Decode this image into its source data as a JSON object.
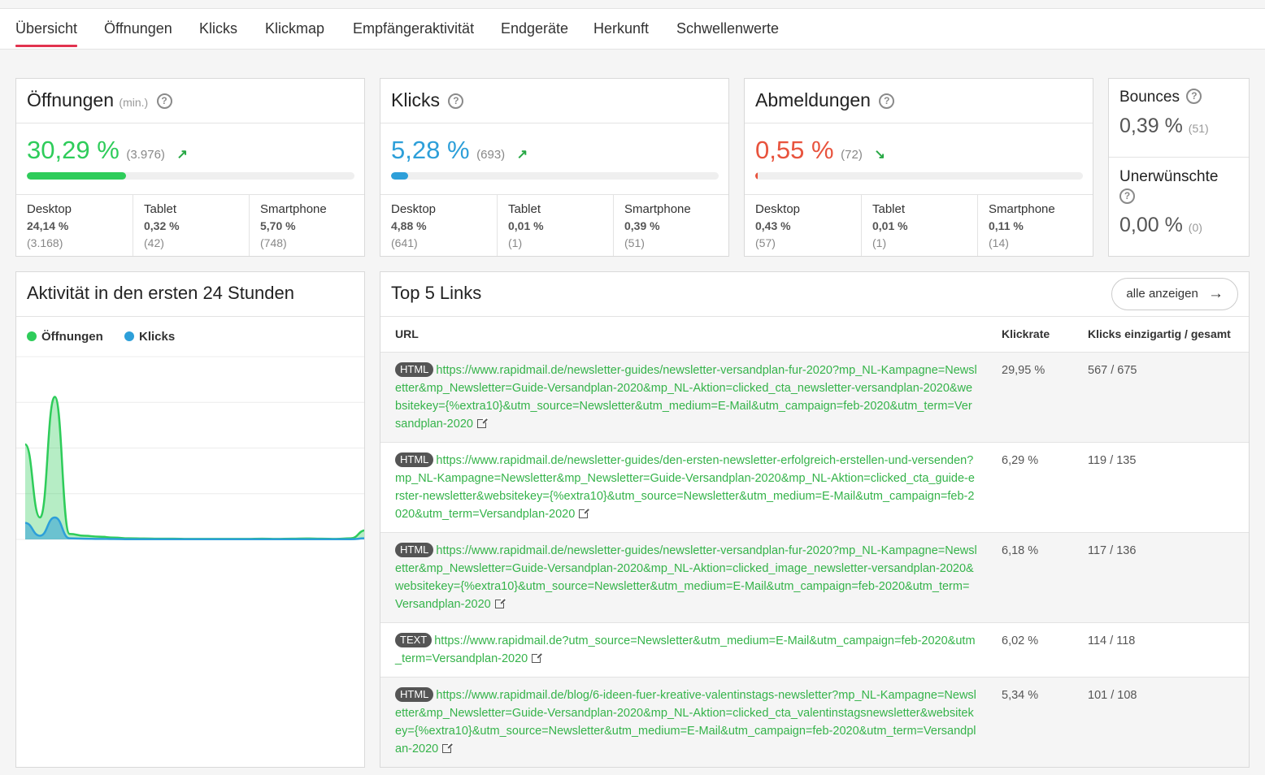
{
  "tabs": [
    "Übersicht",
    "Öffnungen",
    "Klicks",
    "Klickmap",
    "Empfängeraktivität",
    "Endgeräte",
    "Herkunft",
    "Schwellenwerte"
  ],
  "colors": {
    "opens": "#2ecc5a",
    "clicks": "#2d9fd9",
    "unsubs": "#e8533d",
    "tab_accent": "#e2334f",
    "link": "#35b34a"
  },
  "kpis": {
    "opens": {
      "title": "Öffnungen",
      "suffix": "(min.)",
      "value": "30,29 %",
      "count": "(3.976)",
      "trend": "up",
      "fill_percent": 30.29,
      "devices": [
        {
          "label": "Desktop",
          "pct": "24,14 %",
          "count": "(3.168)"
        },
        {
          "label": "Tablet",
          "pct": "0,32 %",
          "count": "(42)"
        },
        {
          "label": "Smartphone",
          "pct": "5,70 %",
          "count": "(748)"
        }
      ]
    },
    "clicks": {
      "title": "Klicks",
      "value": "5,28 %",
      "count": "(693)",
      "trend": "up",
      "fill_percent": 5.28,
      "devices": [
        {
          "label": "Desktop",
          "pct": "4,88 %",
          "count": "(641)"
        },
        {
          "label": "Tablet",
          "pct": "0,01 %",
          "count": "(1)"
        },
        {
          "label": "Smartphone",
          "pct": "0,39 %",
          "count": "(51)"
        }
      ]
    },
    "unsubs": {
      "title": "Abmeldungen",
      "value": "0,55 %",
      "count": "(72)",
      "trend": "down",
      "fill_percent": 0.55,
      "devices": [
        {
          "label": "Desktop",
          "pct": "0,43 %",
          "count": "(57)"
        },
        {
          "label": "Tablet",
          "pct": "0,01 %",
          "count": "(1)"
        },
        {
          "label": "Smartphone",
          "pct": "0,11 %",
          "count": "(14)"
        }
      ]
    },
    "bounces": {
      "title": "Bounces",
      "value": "0,39 %",
      "count": "(51)"
    },
    "unwanted": {
      "title": "Unerwünschte",
      "value": "0,00 %",
      "count": "(0)"
    }
  },
  "activity": {
    "title": "Aktivität in den ersten 24 Stunden",
    "legend": [
      "Öffnungen",
      "Klicks"
    ]
  },
  "chart_data": {
    "type": "area",
    "title": "Aktivität in den ersten 24 Stunden",
    "x": [
      0,
      1,
      2,
      3,
      4,
      5,
      6,
      7,
      8,
      9,
      10,
      11,
      12,
      13,
      14,
      15,
      16,
      17,
      18,
      19,
      20,
      21,
      22,
      23,
      24
    ],
    "series": [
      {
        "name": "Öffnungen",
        "values": [
          52,
          12,
          78,
          3,
          2,
          1.5,
          1,
          0.6,
          0.5,
          0.4,
          0.4,
          0.3,
          0.3,
          0.3,
          0.3,
          0.3,
          0.4,
          0.3,
          0.4,
          0.5,
          0.4,
          0.3,
          0.6,
          5,
          2
        ]
      },
      {
        "name": "Klicks",
        "values": [
          9,
          2,
          12,
          0.6,
          0.4,
          0.3,
          0.2,
          0.1,
          0.1,
          0.1,
          0.1,
          0.1,
          0.1,
          0.1,
          0.1,
          0.1,
          0.1,
          0.1,
          0.1,
          0.1,
          0.1,
          0.1,
          0.1,
          0.6,
          0.3
        ]
      }
    ],
    "ylim": [
      0,
      100
    ],
    "grid": true,
    "legend": "top-left"
  },
  "links": {
    "title": "Top 5 Links",
    "show_all": "alle anzeigen",
    "headers": {
      "url": "URL",
      "rate": "Klickrate",
      "clicks": "Klicks einzigartig / gesamt"
    },
    "rows": [
      {
        "type": "HTML",
        "url": "https://www.rapidmail.de/newsletter-guides/newsletter-versandplan-fur-2020?mp_NL-Kampagne=Newsletter&mp_Newsletter=Guide-Versandplan-2020&mp_NL-Aktion=clicked_cta_newsletter-versandplan-2020&websitekey={%extra10}&utm_source=Newsletter&utm_medium=E-Mail&utm_campaign=feb-2020&utm_term=Versandplan-2020",
        "rate": "29,95 %",
        "clicks": "567 / 675"
      },
      {
        "type": "HTML",
        "url": "https://www.rapidmail.de/newsletter-guides/den-ersten-newsletter-erfolgreich-erstellen-und-versenden?mp_NL-Kampagne=Newsletter&mp_Newsletter=Guide-Versandplan-2020&mp_NL-Aktion=clicked_cta_guide-erster-newsletter&websitekey={%extra10}&utm_source=Newsletter&utm_medium=E-Mail&utm_campaign=feb-2020&utm_term=Versandplan-2020",
        "rate": "6,29 %",
        "clicks": "119 / 135"
      },
      {
        "type": "HTML",
        "url": "https://www.rapidmail.de/newsletter-guides/newsletter-versandplan-fur-2020?mp_NL-Kampagne=Newsletter&mp_Newsletter=Guide-Versandplan-2020&mp_NL-Aktion=clicked_image_newsletter-versandplan-2020&websitekey={%extra10}&utm_source=Newsletter&utm_medium=E-Mail&utm_campaign=feb-2020&utm_term=Versandplan-2020",
        "rate": "6,18 %",
        "clicks": "117 / 136"
      },
      {
        "type": "TEXT",
        "url": "https://www.rapidmail.de?utm_source=Newsletter&utm_medium=E-Mail&utm_campaign=feb-2020&utm_term=Versandplan-2020",
        "rate": "6,02 %",
        "clicks": "114 / 118"
      },
      {
        "type": "HTML",
        "url": "https://www.rapidmail.de/blog/6-ideen-fuer-kreative-valentinstags-newsletter?mp_NL-Kampagne=Newsletter&mp_Newsletter=Guide-Versandplan-2020&mp_NL-Aktion=clicked_cta_valentinstagsnewsletter&websitekey={%extra10}&utm_source=Newsletter&utm_medium=E-Mail&utm_campaign=feb-2020&utm_term=Versandplan-2020",
        "rate": "5,34 %",
        "clicks": "101 / 108"
      }
    ]
  }
}
